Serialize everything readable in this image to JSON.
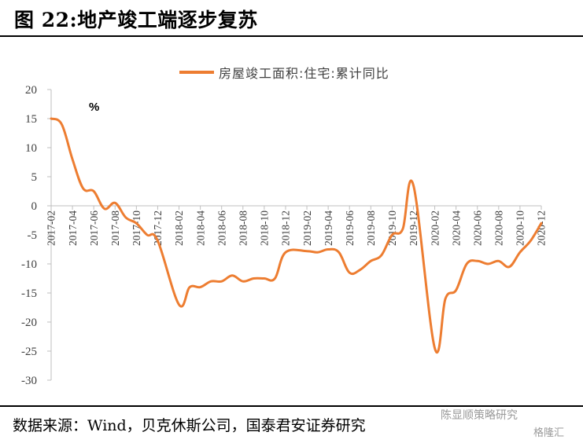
{
  "figure_title": "图 22:地产竣工端逐步复苏",
  "source_text": "数据来源：Wind，贝克休斯公司，国泰君安证券研究",
  "watermark": {
    "wechat": "陈显顺策略研究",
    "brand": "格隆汇"
  },
  "colors": {
    "series": "#ED7D31",
    "axis": "#bfbfbf",
    "text": "#404040"
  },
  "chart_data": {
    "type": "line",
    "title": "",
    "unit_label": "%",
    "ylim": [
      -30,
      20
    ],
    "yticks": [
      20,
      15,
      10,
      5,
      0,
      -5,
      -10,
      -15,
      -20,
      -25,
      -30
    ],
    "x_tick_labels": [
      "2017-02",
      "2017-04",
      "2017-06",
      "2017-08",
      "2017-10",
      "2017-12",
      "2018-02",
      "2018-04",
      "2018-06",
      "2018-08",
      "2018-10",
      "2018-12",
      "2019-02",
      "2019-04",
      "2019-06",
      "2019-08",
      "2019-10",
      "2019-12",
      "2020-02",
      "2020-04",
      "2020-06",
      "2020-08",
      "2020-10",
      "2020-12"
    ],
    "series": [
      {
        "name": "房屋竣工面积:住宅:累计同比",
        "x": [
          "2017-02",
          "2017-03",
          "2017-04",
          "2017-05",
          "2017-06",
          "2017-07",
          "2017-08",
          "2017-09",
          "2017-10",
          "2017-11",
          "2017-12",
          "2018-02",
          "2018-03",
          "2018-04",
          "2018-05",
          "2018-06",
          "2018-07",
          "2018-08",
          "2018-09",
          "2018-10",
          "2018-11",
          "2018-12",
          "2019-02",
          "2019-03",
          "2019-04",
          "2019-05",
          "2019-06",
          "2019-07",
          "2019-08",
          "2019-09",
          "2019-10",
          "2019-11",
          "2019-12",
          "2020-02",
          "2020-03",
          "2020-04",
          "2020-05",
          "2020-06",
          "2020-07",
          "2020-08",
          "2020-09",
          "2020-10",
          "2020-11",
          "2020-12"
        ],
        "values": [
          15.0,
          14.0,
          8.0,
          3.0,
          2.5,
          -0.5,
          0.5,
          -2.0,
          -3.0,
          -5.0,
          -6.0,
          -17.0,
          -14.0,
          -14.0,
          -13.0,
          -13.0,
          -12.0,
          -13.0,
          -12.5,
          -12.5,
          -12.5,
          -8.0,
          -7.8,
          -8.0,
          -7.5,
          -8.0,
          -11.5,
          -11.0,
          -9.5,
          -8.5,
          -5.0,
          -4.0,
          3.5,
          -24.5,
          -16.0,
          -14.5,
          -10.0,
          -9.5,
          -10.0,
          -9.5,
          -10.5,
          -8.0,
          -6.0,
          -3.0
        ]
      }
    ]
  }
}
